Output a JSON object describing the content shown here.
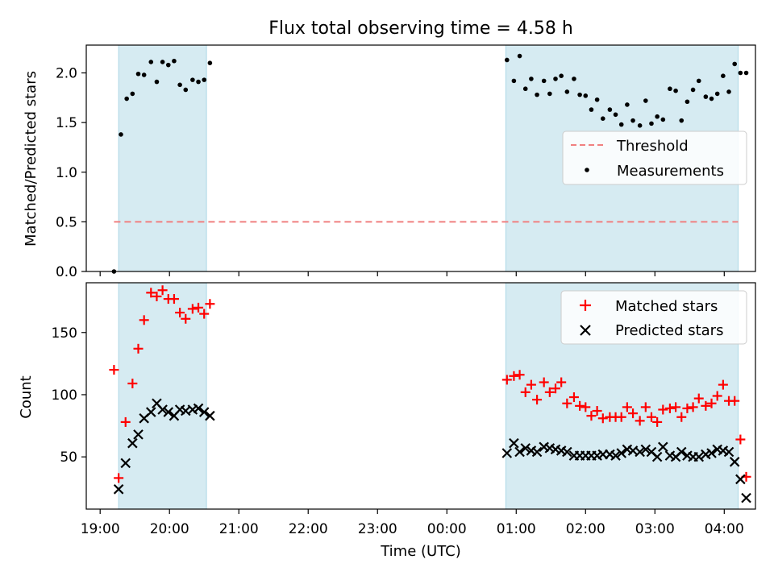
{
  "chart_data": [
    {
      "type": "scatter",
      "title": "Flux total observing time = 4.58 h",
      "ylabel": "Matched/Predicted stars",
      "xlabel": "",
      "xlim": [
        "19:00 - 0.2 h",
        "04:00 + 0.45 h"
      ],
      "ylim": [
        0,
        2.28
      ],
      "yticks": [
        "0.0",
        "0.5",
        "1.0",
        "1.5",
        "2.0"
      ],
      "grid": false,
      "legend_position": "center-right",
      "shaded_intervals": [
        [
          "19:16",
          "20:32"
        ],
        [
          "00:51",
          "04:12"
        ]
      ],
      "shade_color": "#add8e6",
      "threshold": {
        "name": "Threshold",
        "value": 0.5,
        "x_start": "19:12",
        "x_end": "04:12",
        "color": "#f08080",
        "style": "dashed"
      },
      "series": [
        {
          "name": "Measurements",
          "color": "#000000",
          "marker": "dot",
          "points": [
            [
              "19:12",
              0.0
            ],
            [
              "19:18",
              1.38
            ],
            [
              "19:23",
              1.74
            ],
            [
              "19:28",
              1.79
            ],
            [
              "19:33",
              1.99
            ],
            [
              "19:38",
              1.98
            ],
            [
              "19:44",
              2.11
            ],
            [
              "19:49",
              1.91
            ],
            [
              "19:54",
              2.11
            ],
            [
              "19:59",
              2.08
            ],
            [
              "20:04",
              2.12
            ],
            [
              "20:09",
              1.88
            ],
            [
              "20:14",
              1.83
            ],
            [
              "20:20",
              1.93
            ],
            [
              "20:25",
              1.91
            ],
            [
              "20:30",
              1.93
            ],
            [
              "20:35",
              2.1
            ],
            [
              "00:52",
              2.13
            ],
            [
              "00:58",
              1.92
            ],
            [
              "01:03",
              2.17
            ],
            [
              "01:08",
              1.84
            ],
            [
              "01:13",
              1.94
            ],
            [
              "01:18",
              1.78
            ],
            [
              "01:24",
              1.92
            ],
            [
              "01:29",
              1.79
            ],
            [
              "01:34",
              1.94
            ],
            [
              "01:39",
              1.97
            ],
            [
              "01:44",
              1.81
            ],
            [
              "01:50",
              1.94
            ],
            [
              "01:55",
              1.78
            ],
            [
              "02:00",
              1.77
            ],
            [
              "02:05",
              1.63
            ],
            [
              "02:10",
              1.73
            ],
            [
              "02:15",
              1.54
            ],
            [
              "02:21",
              1.63
            ],
            [
              "02:26",
              1.58
            ],
            [
              "02:31",
              1.48
            ],
            [
              "02:36",
              1.68
            ],
            [
              "02:41",
              1.52
            ],
            [
              "02:47",
              1.47
            ],
            [
              "02:52",
              1.72
            ],
            [
              "02:57",
              1.49
            ],
            [
              "03:02",
              1.56
            ],
            [
              "03:07",
              1.53
            ],
            [
              "03:13",
              1.84
            ],
            [
              "03:18",
              1.82
            ],
            [
              "03:23",
              1.52
            ],
            [
              "03:28",
              1.71
            ],
            [
              "03:33",
              1.83
            ],
            [
              "03:38",
              1.92
            ],
            [
              "03:44",
              1.76
            ],
            [
              "03:49",
              1.74
            ],
            [
              "03:54",
              1.79
            ],
            [
              "03:59",
              1.97
            ],
            [
              "04:04",
              1.81
            ],
            [
              "04:09",
              2.09
            ],
            [
              "04:14",
              2.0
            ],
            [
              "04:19",
              2.0
            ]
          ]
        }
      ]
    },
    {
      "type": "scatter",
      "title": "",
      "ylabel": "Count",
      "xlabel": "Time (UTC)",
      "xlim": [
        "19:00 - 0.2 h",
        "04:00 + 0.45 h"
      ],
      "ylim": [
        8,
        190
      ],
      "yticks": [
        "50",
        "100",
        "150"
      ],
      "xticks": [
        "19:00",
        "20:00",
        "21:00",
        "22:00",
        "23:00",
        "00:00",
        "01:00",
        "02:00",
        "03:00",
        "04:00"
      ],
      "grid": false,
      "legend_position": "top-right",
      "shaded_intervals": [
        [
          "19:16",
          "20:32"
        ],
        [
          "00:51",
          "04:12"
        ]
      ],
      "shade_color": "#add8e6",
      "series": [
        {
          "name": "Matched stars",
          "color": "#ff0000",
          "marker": "plus",
          "points": [
            [
              "19:12",
              120
            ],
            [
              "19:16",
              33
            ],
            [
              "19:22",
              78
            ],
            [
              "19:28",
              109
            ],
            [
              "19:33",
              137
            ],
            [
              "19:38",
              160
            ],
            [
              "19:44",
              182
            ],
            [
              "19:49",
              179
            ],
            [
              "19:54",
              184
            ],
            [
              "19:59",
              177
            ],
            [
              "20:04",
              177
            ],
            [
              "20:09",
              166
            ],
            [
              "20:14",
              161
            ],
            [
              "20:20",
              169
            ],
            [
              "20:25",
              170
            ],
            [
              "20:30",
              165
            ],
            [
              "20:35",
              173
            ],
            [
              "00:52",
              112
            ],
            [
              "00:58",
              115
            ],
            [
              "01:03",
              116
            ],
            [
              "01:08",
              102
            ],
            [
              "01:13",
              108
            ],
            [
              "01:18",
              96
            ],
            [
              "01:24",
              110
            ],
            [
              "01:29",
              102
            ],
            [
              "01:34",
              105
            ],
            [
              "01:39",
              110
            ],
            [
              "01:44",
              93
            ],
            [
              "01:50",
              98
            ],
            [
              "01:55",
              91
            ],
            [
              "02:00",
              90
            ],
            [
              "02:05",
              83
            ],
            [
              "02:10",
              87
            ],
            [
              "02:15",
              81
            ],
            [
              "02:21",
              82
            ],
            [
              "02:26",
              82
            ],
            [
              "02:31",
              82
            ],
            [
              "02:36",
              90
            ],
            [
              "02:41",
              85
            ],
            [
              "02:47",
              79
            ],
            [
              "02:52",
              90
            ],
            [
              "02:57",
              82
            ],
            [
              "03:02",
              78
            ],
            [
              "03:07",
              88
            ],
            [
              "03:13",
              89
            ],
            [
              "03:18",
              90
            ],
            [
              "03:23",
              82
            ],
            [
              "03:28",
              89
            ],
            [
              "03:33",
              90
            ],
            [
              "03:38",
              97
            ],
            [
              "03:44",
              91
            ],
            [
              "03:49",
              93
            ],
            [
              "03:54",
              99
            ],
            [
              "03:59",
              108
            ],
            [
              "04:04",
              95
            ],
            [
              "04:09",
              95
            ],
            [
              "04:14",
              64
            ],
            [
              "04:19",
              34
            ]
          ]
        },
        {
          "name": "Predicted stars",
          "color": "#000000",
          "marker": "x",
          "points": [
            [
              "19:16",
              24
            ],
            [
              "19:22",
              45
            ],
            [
              "19:28",
              61
            ],
            [
              "19:33",
              68
            ],
            [
              "19:38",
              81
            ],
            [
              "19:44",
              86
            ],
            [
              "19:49",
              93
            ],
            [
              "19:54",
              88
            ],
            [
              "19:59",
              86
            ],
            [
              "20:04",
              83
            ],
            [
              "20:09",
              88
            ],
            [
              "20:14",
              87
            ],
            [
              "20:20",
              88
            ],
            [
              "20:25",
              89
            ],
            [
              "20:30",
              86
            ],
            [
              "20:35",
              83
            ],
            [
              "00:52",
              53
            ],
            [
              "00:58",
              61
            ],
            [
              "01:03",
              54
            ],
            [
              "01:08",
              57
            ],
            [
              "01:13",
              55
            ],
            [
              "01:18",
              54
            ],
            [
              "01:24",
              58
            ],
            [
              "01:29",
              57
            ],
            [
              "01:34",
              56
            ],
            [
              "01:39",
              55
            ],
            [
              "01:44",
              54
            ],
            [
              "01:50",
              51
            ],
            [
              "01:55",
              51
            ],
            [
              "02:00",
              51
            ],
            [
              "02:05",
              51
            ],
            [
              "02:10",
              51
            ],
            [
              "02:15",
              52
            ],
            [
              "02:21",
              52
            ],
            [
              "02:26",
              51
            ],
            [
              "02:31",
              53
            ],
            [
              "02:36",
              56
            ],
            [
              "02:41",
              55
            ],
            [
              "02:47",
              54
            ],
            [
              "02:52",
              56
            ],
            [
              "02:57",
              54
            ],
            [
              "03:02",
              50
            ],
            [
              "03:07",
              58
            ],
            [
              "03:13",
              51
            ],
            [
              "03:18",
              50
            ],
            [
              "03:23",
              54
            ],
            [
              "03:28",
              51
            ],
            [
              "03:33",
              50
            ],
            [
              "03:38",
              50
            ],
            [
              "03:44",
              52
            ],
            [
              "03:49",
              53
            ],
            [
              "03:54",
              56
            ],
            [
              "03:59",
              55
            ],
            [
              "04:04",
              54
            ],
            [
              "04:09",
              46
            ],
            [
              "04:14",
              32
            ],
            [
              "04:19",
              17
            ]
          ]
        }
      ]
    }
  ]
}
